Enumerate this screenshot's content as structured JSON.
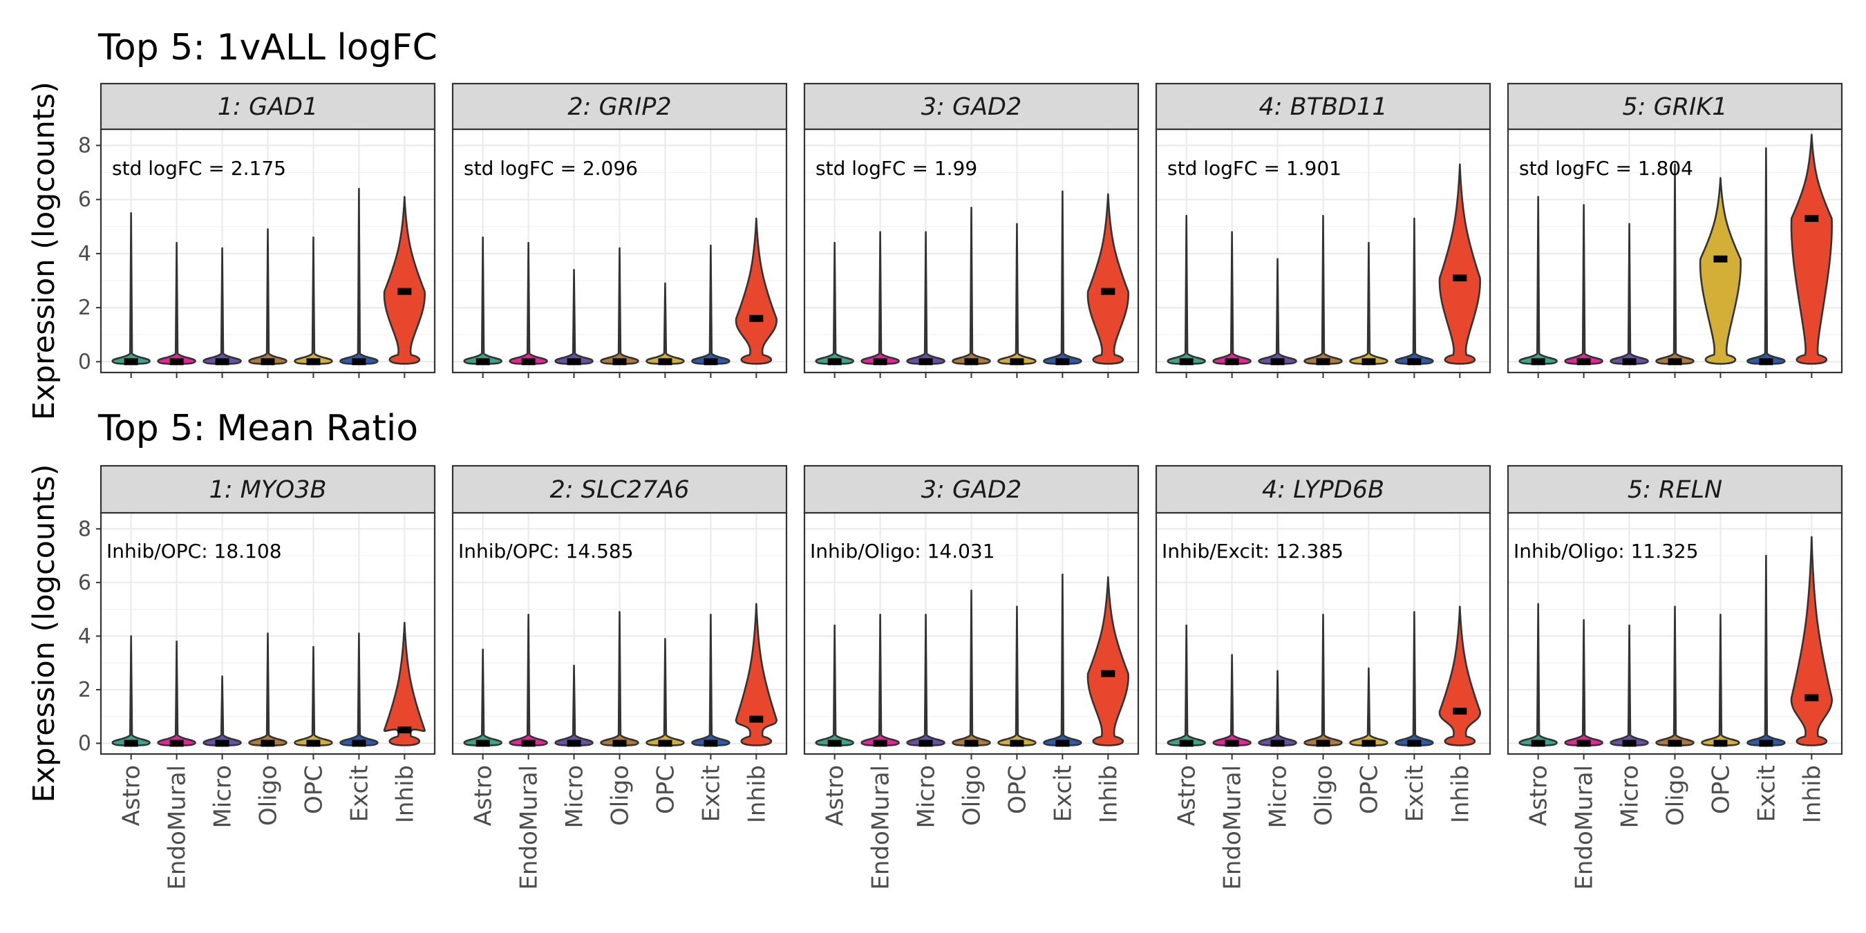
{
  "chart_data": [
    {
      "type": "violin",
      "title": "Top 5: 1vALL logFC",
      "ylabel": "Expression (logcounts)",
      "ylim": [
        -0.4,
        8.6
      ],
      "yticks": [
        0,
        2,
        4,
        6,
        8
      ],
      "categories": [
        "Astro",
        "EndoMural",
        "Micro",
        "Oligo",
        "OPC",
        "Excit",
        "Inhib"
      ],
      "category_colors": {
        "Astro": "#3BA58B",
        "EndoMural": "#E5269A",
        "Micro": "#6A4FA8",
        "Oligo": "#B07A3A",
        "OPC": "#D4AF37",
        "Excit": "#2E5AAC",
        "Inhib": "#E8472E"
      },
      "grid": true,
      "panels": [
        {
          "label": "1: GAD1",
          "annotation": "std logFC = 2.175",
          "max": [
            5.5,
            4.4,
            4.2,
            4.9,
            4.6,
            6.4,
            6.1
          ],
          "median": [
            0,
            0,
            0,
            0,
            0,
            0,
            2.6
          ]
        },
        {
          "label": "2: GRIP2",
          "annotation": "std logFC = 2.096",
          "max": [
            4.6,
            4.4,
            3.4,
            4.2,
            2.9,
            4.3,
            5.3
          ],
          "median": [
            0,
            0,
            0,
            0,
            0,
            0,
            1.6
          ]
        },
        {
          "label": "3: GAD2",
          "annotation": "std logFC = 1.99",
          "max": [
            4.4,
            4.8,
            4.8,
            5.7,
            5.1,
            6.3,
            6.2
          ],
          "median": [
            0,
            0,
            0,
            0,
            0,
            0,
            2.6
          ]
        },
        {
          "label": "4: BTBD11",
          "annotation": "std logFC = 1.901",
          "max": [
            5.4,
            4.8,
            3.8,
            5.4,
            4.4,
            5.3,
            7.3
          ],
          "median": [
            0,
            0,
            0,
            0,
            0,
            0,
            3.1
          ]
        },
        {
          "label": "5: GRIK1",
          "annotation": "std logFC = 1.804",
          "max": [
            6.1,
            5.8,
            5.1,
            7.3,
            6.8,
            7.9,
            8.4
          ],
          "median": [
            0,
            0,
            0,
            0,
            3.8,
            0,
            5.3
          ]
        }
      ]
    },
    {
      "type": "violin",
      "title": "Top 5: Mean Ratio",
      "ylabel": "Expression (logcounts)",
      "ylim": [
        -0.4,
        8.6
      ],
      "yticks": [
        0,
        2,
        4,
        6,
        8
      ],
      "categories": [
        "Astro",
        "EndoMural",
        "Micro",
        "Oligo",
        "OPC",
        "Excit",
        "Inhib"
      ],
      "grid": true,
      "panels": [
        {
          "label": "1: MYO3B",
          "annotation": "Inhib/OPC: 18.108",
          "max": [
            4.0,
            3.8,
            2.5,
            4.1,
            3.6,
            4.1,
            4.5
          ],
          "median": [
            0,
            0,
            0,
            0,
            0,
            0,
            0.5
          ]
        },
        {
          "label": "2: SLC27A6",
          "annotation": "Inhib/OPC: 14.585",
          "max": [
            3.5,
            4.8,
            2.9,
            4.9,
            3.9,
            4.8,
            5.2
          ],
          "median": [
            0,
            0,
            0,
            0,
            0,
            0,
            0.9
          ]
        },
        {
          "label": "3: GAD2",
          "annotation": "Inhib/Oligo: 14.031",
          "max": [
            4.4,
            4.8,
            4.8,
            5.7,
            5.1,
            6.3,
            6.2
          ],
          "median": [
            0,
            0,
            0,
            0,
            0,
            0,
            2.6
          ]
        },
        {
          "label": "4: LYPD6B",
          "annotation": "Inhib/Excit: 12.385",
          "max": [
            4.4,
            3.3,
            2.7,
            4.8,
            2.8,
            4.9,
            5.1
          ],
          "median": [
            0,
            0,
            0,
            0,
            0,
            0,
            1.2
          ]
        },
        {
          "label": "5: RELN",
          "annotation": "Inhib/Oligo: 11.325",
          "max": [
            5.2,
            4.6,
            4.4,
            5.1,
            4.8,
            7.0,
            7.7
          ],
          "median": [
            0,
            0,
            0,
            0,
            0,
            0,
            1.7
          ]
        }
      ]
    }
  ]
}
